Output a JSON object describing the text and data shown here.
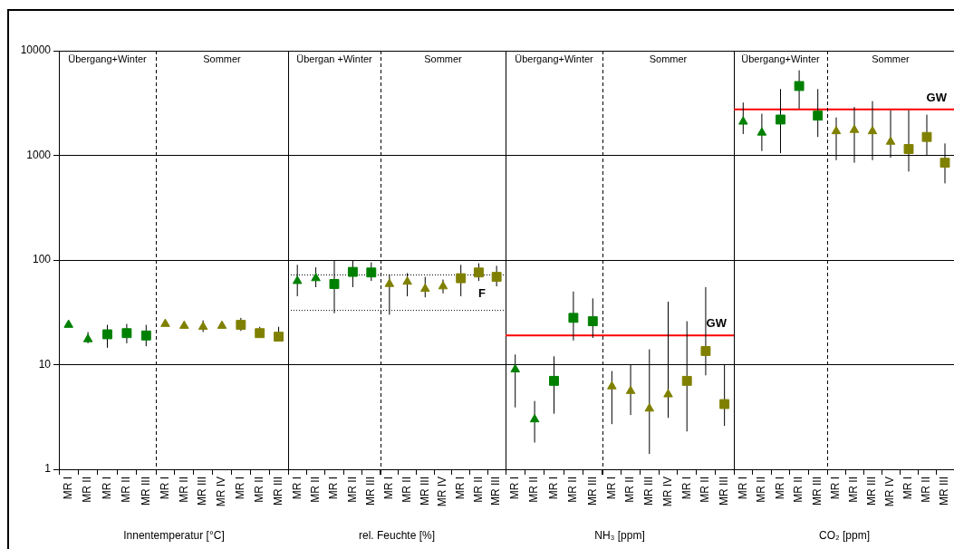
{
  "chart_data": [
    {
      "type": "scatter",
      "xlabel": "Innentemperatur [°C]",
      "categories": [
        "MR I",
        "MR II",
        "MR I",
        "MR II",
        "MR III"
      ],
      "log": "y",
      "ylim": [
        1,
        10000
      ],
      "yticks": [
        1,
        10,
        100,
        1000,
        10000
      ],
      "grid": "y",
      "legend": false,
      "annotations": [
        "Übergang+Winter"
      ],
      "series": [
        {
          "marker": "triangle",
          "color": "#008000",
          "values": [
            24,
            17.5,
            null,
            null,
            null
          ],
          "errors": [
            null,
            [
              16,
              20.5
            ],
            null,
            null,
            null
          ]
        },
        {
          "marker": "square",
          "color": "#008000",
          "values": [
            null,
            null,
            19.5,
            20,
            19
          ],
          "errors": [
            null,
            null,
            [
              14.5,
              24
            ],
            [
              16,
              24.5
            ],
            [
              15,
              24
            ]
          ]
        }
      ]
    },
    {
      "type": "scatter",
      "categories": [
        "MR I",
        "MR II",
        "MR III",
        "MR IV",
        "MR I",
        "MR II",
        "MR III"
      ],
      "log": "y",
      "ylim": [
        1,
        10000
      ],
      "yticks": [
        1,
        10,
        100,
        1000,
        10000
      ],
      "tick_labels": "x",
      "grid": "y",
      "legend": false,
      "annotations": [
        "Sommer"
      ],
      "series": [
        {
          "marker": "triangle",
          "color": "#808000",
          "values": [
            24.5,
            23.5,
            23,
            23.5,
            null,
            null,
            null
          ],
          "errors": [
            null,
            null,
            [
              20.5,
              26.5
            ],
            null,
            null,
            null,
            null
          ]
        },
        {
          "marker": "square",
          "color": "#808000",
          "values": [
            null,
            null,
            null,
            null,
            24,
            20,
            18.5
          ],
          "errors": [
            null,
            null,
            null,
            null,
            [
              21,
              28
            ],
            [
              19,
              23
            ],
            [
              18,
              23
            ]
          ]
        }
      ]
    },
    {
      "type": "scatter",
      "xlabel": "rel. Feuchte [%]",
      "categories": [
        "MR I",
        "MR II",
        "MR I",
        "MR II",
        "MR III"
      ],
      "log": "y",
      "ylim": [
        1,
        10000
      ],
      "yticks": [
        1,
        10,
        100,
        1000,
        10000
      ],
      "tick_labels": "x",
      "grid": "y",
      "legend": false,
      "annotations": [
        "Übergan +Winter"
      ],
      "ref_lines": [
        {
          "axis": "y",
          "value": 33,
          "color": "#000000",
          "line_style": "dotted"
        },
        {
          "axis": "y",
          "value": 72,
          "color": "#000000",
          "line_style": "dotted"
        }
      ],
      "series": [
        {
          "marker": "triangle",
          "color": "#008000",
          "values": [
            63,
            67,
            null,
            null,
            null
          ],
          "errors": [
            [
              45,
              90
            ],
            [
              55,
              85
            ],
            null,
            null,
            null
          ]
        },
        {
          "marker": "square",
          "color": "#008000",
          "values": [
            null,
            null,
            59,
            77,
            76
          ],
          "errors": [
            null,
            null,
            [
              31,
              98
            ],
            [
              55,
              100
            ],
            [
              63,
              95
            ]
          ]
        }
      ]
    },
    {
      "type": "scatter",
      "categories": [
        "MR I",
        "MR II",
        "MR III",
        "MR IV",
        "MR I",
        "MR II",
        "MR III"
      ],
      "log": "y",
      "ylim": [
        1,
        10000
      ],
      "yticks": [
        1,
        10,
        100,
        1000,
        10000
      ],
      "tick_labels": "x",
      "grid": "y",
      "legend": false,
      "annotations": [
        "Sommer"
      ],
      "ref_lines": [
        {
          "axis": "y",
          "value": 33,
          "color": "#000000",
          "line_style": "dotted"
        },
        {
          "axis": "y",
          "value": 72,
          "label": "F",
          "color": "#000000",
          "line_style": "dotted"
        }
      ],
      "series": [
        {
          "marker": "triangle",
          "color": "#808000",
          "values": [
            59,
            62,
            53,
            56,
            null,
            null,
            null
          ],
          "errors": [
            [
              30,
              73
            ],
            [
              45,
              75
            ],
            [
              44,
              69
            ],
            [
              48,
              65
            ],
            null,
            null,
            null
          ]
        },
        {
          "marker": "square",
          "color": "#808000",
          "values": [
            null,
            null,
            null,
            null,
            67,
            76,
            69
          ],
          "errors": [
            null,
            null,
            null,
            null,
            [
              45,
              90
            ],
            [
              63,
              93
            ],
            [
              56,
              88
            ]
          ]
        }
      ]
    },
    {
      "type": "scatter",
      "xlabel": "NH₃ [ppm]",
      "categories": [
        "MR I",
        "MR II",
        "MR I",
        "MR II",
        "MR III"
      ],
      "log": "y",
      "ylim": [
        1,
        10000
      ],
      "yticks": [
        1,
        10,
        100,
        1000,
        10000
      ],
      "tick_labels": "x",
      "grid": "y",
      "legend": false,
      "annotations": [
        "Übergang+Winter"
      ],
      "ref_lines": [
        {
          "axis": "y",
          "value": 19,
          "color": "#ff0000"
        }
      ],
      "series": [
        {
          "marker": "triangle",
          "color": "#008000",
          "values": [
            9,
            3,
            null,
            null,
            null
          ],
          "errors": [
            [
              3.9,
              12.5
            ],
            [
              1.8,
              4.5
            ],
            null,
            null,
            null
          ]
        },
        {
          "marker": "square",
          "color": "#008000",
          "values": [
            null,
            null,
            7,
            28,
            26
          ],
          "errors": [
            null,
            null,
            [
              3.4,
              12
            ],
            [
              17,
              50
            ],
            [
              18,
              43
            ]
          ]
        }
      ]
    },
    {
      "type": "scatter",
      "categories": [
        "MR I",
        "MR II",
        "MR III",
        "MR IV",
        "MR I",
        "MR II",
        "MR III"
      ],
      "log": "y",
      "ylim": [
        1,
        10000
      ],
      "yticks": [
        1,
        10,
        100,
        1000,
        10000
      ],
      "tick_labels": "x",
      "grid": "y",
      "legend": false,
      "annotations": [
        "Sommer"
      ],
      "ref_lines": [
        {
          "axis": "y",
          "value": 19,
          "label": "GW",
          "color": "#ff0000"
        }
      ],
      "series": [
        {
          "marker": "triangle",
          "color": "#808000",
          "values": [
            6.2,
            5.6,
            3.8,
            5.2,
            null,
            null,
            null
          ],
          "errors": [
            [
              2.7,
              8.7
            ],
            [
              3.3,
              10
            ],
            [
              1.4,
              14
            ],
            [
              3.1,
              40
            ],
            null,
            null,
            null
          ]
        },
        {
          "marker": "square",
          "color": "#808000",
          "values": [
            null,
            null,
            null,
            null,
            7,
            13.5,
            4.2
          ],
          "errors": [
            null,
            null,
            null,
            null,
            [
              2.3,
              26
            ],
            [
              7.9,
              55
            ],
            [
              2.6,
              10
            ]
          ]
        }
      ]
    },
    {
      "type": "scatter",
      "xlabel": "CO₂ [ppm]",
      "categories": [
        "MR I",
        "MR II",
        "MR I",
        "MR II",
        "MR III"
      ],
      "log": "y",
      "ylim": [
        1,
        10000
      ],
      "yticks": [
        1,
        10,
        100,
        1000,
        10000
      ],
      "tick_labels": "x",
      "grid": "y",
      "legend": false,
      "annotations": [
        "Übergang+Winter"
      ],
      "ref_lines": [
        {
          "axis": "y",
          "value": 2750,
          "color": "#ff0000"
        }
      ],
      "series": [
        {
          "marker": "triangle",
          "color": "#008000",
          "values": [
            2100,
            1650,
            null,
            null,
            null
          ],
          "errors": [
            [
              1600,
              3200
            ],
            [
              1100,
              2500
            ],
            null,
            null,
            null
          ]
        },
        {
          "marker": "square",
          "color": "#008000",
          "values": [
            null,
            null,
            2200,
            4600,
            2400
          ],
          "errors": [
            null,
            null,
            [
              1050,
              4300
            ],
            [
              2800,
              6500
            ],
            [
              1500,
              4300
            ]
          ]
        }
      ]
    },
    {
      "type": "scatter",
      "categories": [
        "MR I",
        "MR II",
        "MR III",
        "MR IV",
        "MR I",
        "MR II",
        "MR III"
      ],
      "log": "y",
      "ylim": [
        1,
        10000
      ],
      "yticks": [
        1,
        10,
        100,
        1000,
        10000
      ],
      "tick_labels": "x",
      "grid": "y",
      "legend": false,
      "annotations": [
        "Sommer"
      ],
      "ref_lines": [
        {
          "axis": "y",
          "value": 2750,
          "label": "GW",
          "color": "#ff0000"
        }
      ],
      "series": [
        {
          "marker": "triangle",
          "color": "#808000",
          "values": [
            1700,
            1750,
            1700,
            1350,
            null,
            null,
            null
          ],
          "errors": [
            [
              900,
              2300
            ],
            [
              850,
              2900
            ],
            [
              900,
              3300
            ],
            [
              950,
              2700
            ],
            null,
            null,
            null
          ]
        },
        {
          "marker": "square",
          "color": "#808000",
          "values": [
            null,
            null,
            null,
            null,
            1150,
            1500,
            850
          ],
          "errors": [
            null,
            null,
            null,
            null,
            [
              700,
              2700
            ],
            [
              1000,
              2450
            ],
            [
              540,
              1300
            ]
          ]
        }
      ]
    }
  ]
}
